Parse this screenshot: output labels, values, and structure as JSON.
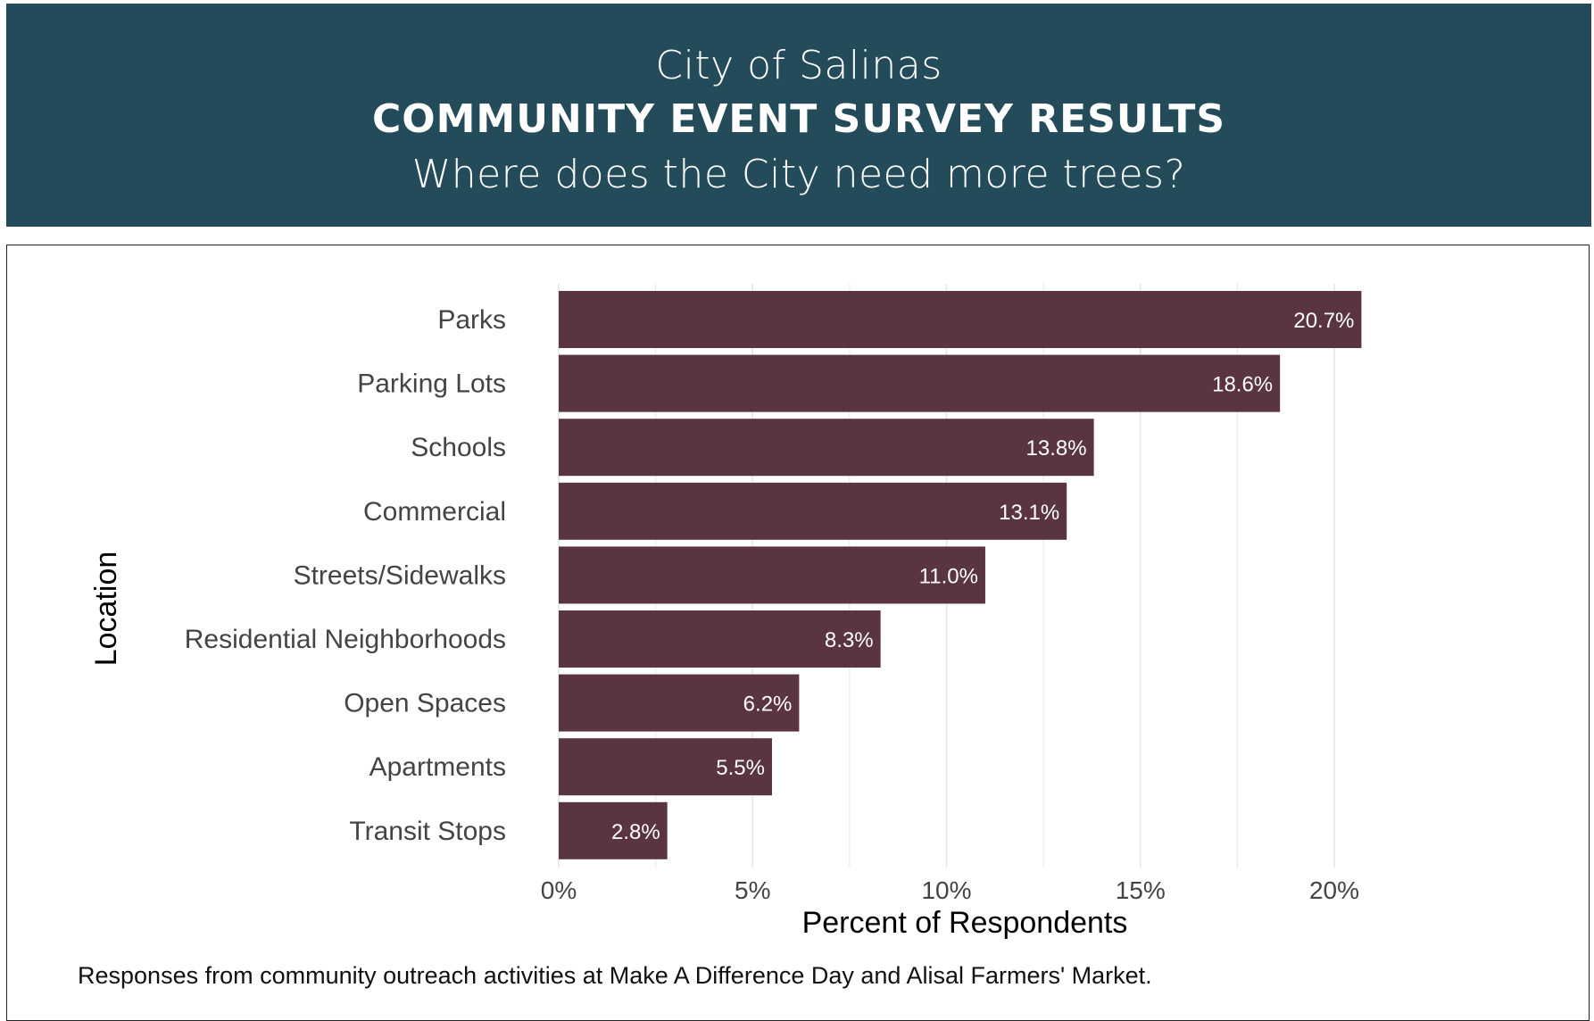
{
  "header": {
    "line1": "City of Salinas",
    "line2": "COMMUNITY EVENT SURVEY RESULTS",
    "line3": "Where does the City need more trees?"
  },
  "caption": "Responses from community outreach activities at Make A Difference Day and Alisal Farmers' Market.",
  "colors": {
    "header_bg": "#234b5a",
    "bar": "#5a3441",
    "grid": "#e6e6e6"
  },
  "chart_data": {
    "type": "bar",
    "orientation": "horizontal",
    "categories": [
      "Parks",
      "Parking Lots",
      "Schools",
      "Commercial",
      "Streets/Sidewalks",
      "Residential Neighborhoods",
      "Open Spaces",
      "Apartments",
      "Transit Stops"
    ],
    "values": [
      20.7,
      18.6,
      13.8,
      13.1,
      11.0,
      8.3,
      6.2,
      5.5,
      2.8
    ],
    "value_labels": [
      "20.7%",
      "18.6%",
      "13.8%",
      "13.1%",
      "11.0%",
      "8.3%",
      "6.2%",
      "5.5%",
      "2.8%"
    ],
    "xlabel": "Percent of Respondents",
    "ylabel": "Location",
    "xlim": [
      0,
      22
    ],
    "xticks": [
      0,
      5,
      10,
      15,
      20
    ],
    "xtick_labels": [
      "0%",
      "5%",
      "10%",
      "15%",
      "20%"
    ],
    "grid": true
  }
}
